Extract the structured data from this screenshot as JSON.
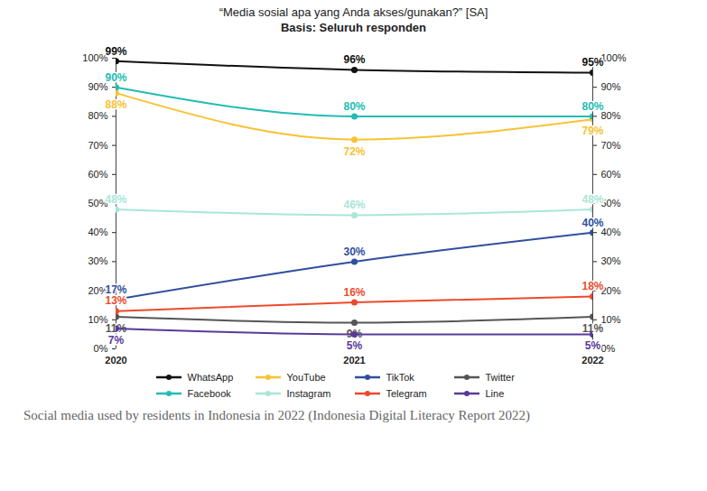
{
  "chart_data": {
    "type": "line",
    "title": "“Media sosial apa yang Anda akses/gunakan?” [SA]",
    "subtitle": "Basis: Seluruh responden",
    "caption": "Social media used by residents in Indonesia in 2022 (Indonesia Digital Literacy Report 2022)",
    "categories": [
      "2020",
      "2021",
      "2022"
    ],
    "series": [
      {
        "name": "WhatsApp",
        "color": "#111111",
        "values": [
          99,
          96,
          95
        ],
        "value_labels": [
          "99%",
          "96%",
          "95%"
        ]
      },
      {
        "name": "YouTube",
        "color": "#f7c234",
        "values": [
          88,
          72,
          79
        ],
        "value_labels": [
          "88%",
          "72%",
          "79%"
        ]
      },
      {
        "name": "TikTok",
        "color": "#2f4f9e",
        "values": [
          17,
          30,
          40
        ],
        "value_labels": [
          "17%",
          "30%",
          "40%"
        ]
      },
      {
        "name": "Twitter",
        "color": "#555555",
        "values": [
          11,
          9,
          11
        ],
        "value_labels": [
          "11%",
          "9%",
          "11%"
        ]
      },
      {
        "name": "Facebook",
        "color": "#22bcb4",
        "values": [
          90,
          80,
          80
        ],
        "value_labels": [
          "90%",
          "80%",
          "80%"
        ]
      },
      {
        "name": "Instagram",
        "color": "#a9e6d6",
        "values": [
          48,
          46,
          48
        ],
        "value_labels": [
          "48%",
          "46%",
          "48%"
        ]
      },
      {
        "name": "Telegram",
        "color": "#ec4a2c",
        "values": [
          13,
          16,
          18
        ],
        "value_labels": [
          "13%",
          "16%",
          "18%"
        ]
      },
      {
        "name": "Line",
        "color": "#5a3a98",
        "values": [
          7,
          5,
          5
        ],
        "value_labels": [
          "7%",
          "5%",
          "5%"
        ]
      }
    ],
    "ylim": [
      0,
      100
    ],
    "yticks": [
      {
        "value": 0,
        "label": "0%"
      },
      {
        "value": 10,
        "label": "10%"
      },
      {
        "value": 20,
        "label": "20%"
      },
      {
        "value": 30,
        "label": "30%"
      },
      {
        "value": 40,
        "label": "40%"
      },
      {
        "value": 50,
        "label": "50%"
      },
      {
        "value": 60,
        "label": "60%"
      },
      {
        "value": 70,
        "label": "70%"
      },
      {
        "value": 80,
        "label": "80%"
      },
      {
        "value": 90,
        "label": "90%"
      },
      {
        "value": 100,
        "label": "100%"
      }
    ],
    "grid": false,
    "legend": "bottom",
    "data_labels": true,
    "marker": "circle",
    "line_style": "solid"
  }
}
